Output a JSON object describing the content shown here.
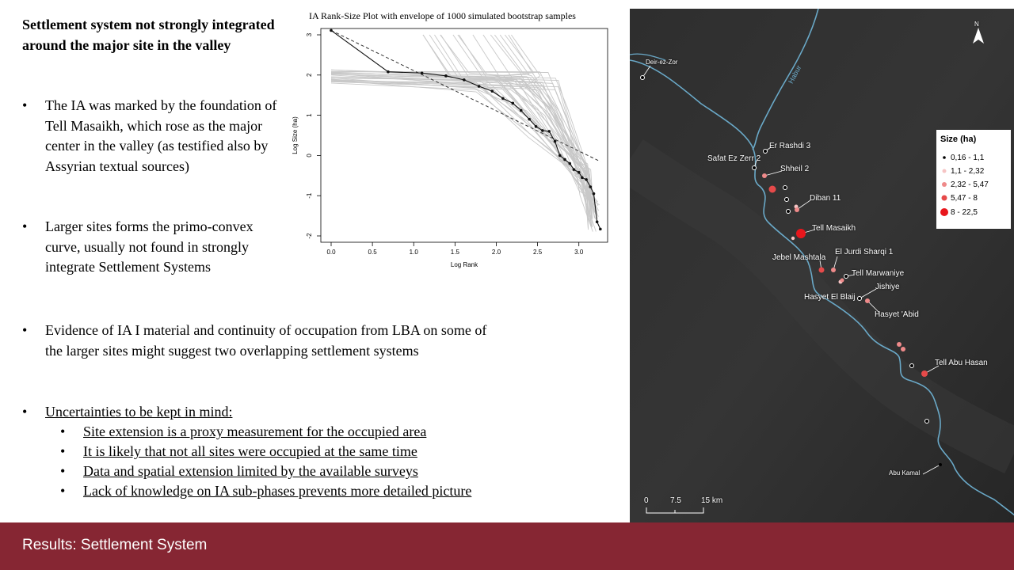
{
  "heading": "Settlement system not strongly integrated around the major site in the valley",
  "bullets": [
    "The IA was marked by the foundation of Tell Masaikh, which rose as the major center in the valley (as testified also by Assyrian textual sources)",
    "Larger sites forms the primo-convex curve, usually not found in strongly integrate Settlement Systems",
    "Evidence of IA I material and continuity of occupation from LBA on some of the larger sites might suggest two overlapping settlement systems",
    "Uncertainties to be kept in mind:"
  ],
  "sub_bullets": [
    "Site extension is a proxy measurement for the occupied area",
    "It is likely that not all sites were occupied at the same time",
    "Data and spatial extension limited by the available surveys",
    "Lack of knowledge on IA sub-phases prevents more detailed picture"
  ],
  "bullet_glyph": "•",
  "chart_data": {
    "type": "line",
    "title": "IA Rank-Size Plot with envelope of 1000 simulated bootstrap samples",
    "xlabel": "Log Rank",
    "ylabel": "Log Size (ha)",
    "xlim": [
      0.0,
      3.3
    ],
    "ylim": [
      -2,
      3
    ],
    "x_ticks": [
      "0.0",
      "0.5",
      "1.0",
      "1.5",
      "2.0",
      "2.5",
      "3.0"
    ],
    "y_ticks": [
      "-2",
      "-1",
      "0",
      "1",
      "2",
      "3"
    ],
    "observed": {
      "x": [
        0.0,
        0.69,
        1.1,
        1.39,
        1.61,
        1.79,
        1.95,
        2.08,
        2.2,
        2.3,
        2.4,
        2.48,
        2.56,
        2.64,
        2.71,
        2.77,
        2.83,
        2.89,
        2.94,
        3.0,
        3.04,
        3.09,
        3.14,
        3.18,
        3.22,
        3.26
      ],
      "y": [
        3.11,
        2.08,
        2.05,
        1.98,
        1.88,
        1.72,
        1.6,
        1.42,
        1.3,
        1.12,
        0.9,
        0.72,
        0.62,
        0.6,
        0.35,
        0.0,
        -0.1,
        -0.2,
        -0.35,
        -0.42,
        -0.55,
        -0.6,
        -0.78,
        -0.95,
        -1.65,
        -1.83
      ]
    },
    "reference_line": {
      "x": [
        0.0,
        3.26
      ],
      "y": [
        3.11,
        -0.15
      ]
    }
  },
  "map": {
    "north_label": "N",
    "river_label": "Habur",
    "legend_title": "Size (ha)",
    "legend": [
      {
        "label": "0,16 - 1,1",
        "color": "#000000"
      },
      {
        "label": "1,1 - 2,32",
        "color": "#f6c4c4"
      },
      {
        "label": "2,32 - 5,47",
        "color": "#ef8a8a"
      },
      {
        "label": "5,47 - 8",
        "color": "#e64a4a"
      },
      {
        "label": "8 - 22,5",
        "color": "#e8161c"
      }
    ],
    "places": [
      "Deir-ez-Zor",
      "Er Rashdi 3",
      "Safat Ez Zerr 2",
      "Shheil 2",
      "Diban 11",
      "Tell Masaikh",
      "Jebel Mashtala",
      "El Jurdi Sharqi 1",
      "Tell Marwaniye",
      "Jishiye",
      "Hasyet El Blaij",
      "Hasyet 'Abid",
      "Tell Abu Hasan",
      "Abu Kamal"
    ],
    "scale": [
      "0",
      "7.5",
      "15 km"
    ]
  },
  "footer": "Results: Settlement System"
}
